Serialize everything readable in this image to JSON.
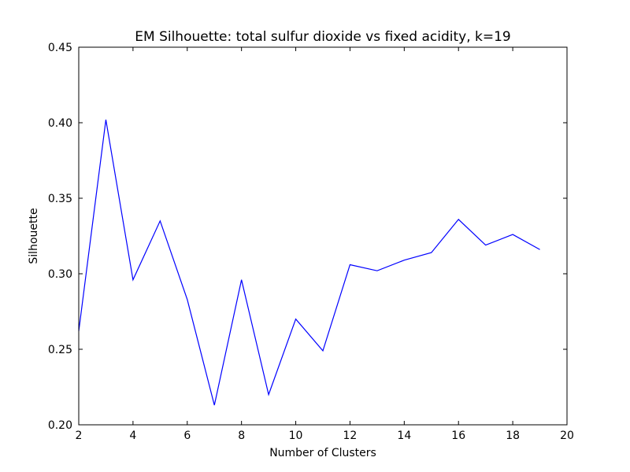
{
  "chart_data": {
    "type": "line",
    "title": "EM Silhouette: total sulfur dioxide vs fixed acidity, k=19",
    "xlabel": "Number of Clusters",
    "ylabel": "Silhouette",
    "xlim": [
      2,
      20
    ],
    "ylim": [
      0.2,
      0.45
    ],
    "xticks": [
      2,
      4,
      6,
      8,
      10,
      12,
      14,
      16,
      18,
      20
    ],
    "xtick_labels": [
      "2",
      "4",
      "6",
      "8",
      "10",
      "12",
      "14",
      "16",
      "18",
      "20"
    ],
    "yticks": [
      0.2,
      0.25,
      0.3,
      0.35,
      0.4,
      0.45
    ],
    "ytick_labels": [
      "0.20",
      "0.25",
      "0.30",
      "0.35",
      "0.40",
      "0.45"
    ],
    "grid": false,
    "series": [
      {
        "color": "#0000ff",
        "x": [
          2,
          3,
          4,
          5,
          6,
          7,
          8,
          9,
          10,
          11,
          12,
          13,
          14,
          15,
          16,
          17,
          18,
          19
        ],
        "y": [
          0.262,
          0.402,
          0.296,
          0.335,
          0.283,
          0.213,
          0.296,
          0.22,
          0.27,
          0.249,
          0.306,
          0.302,
          0.309,
          0.314,
          0.336,
          0.319,
          0.326,
          0.316
        ]
      }
    ]
  }
}
